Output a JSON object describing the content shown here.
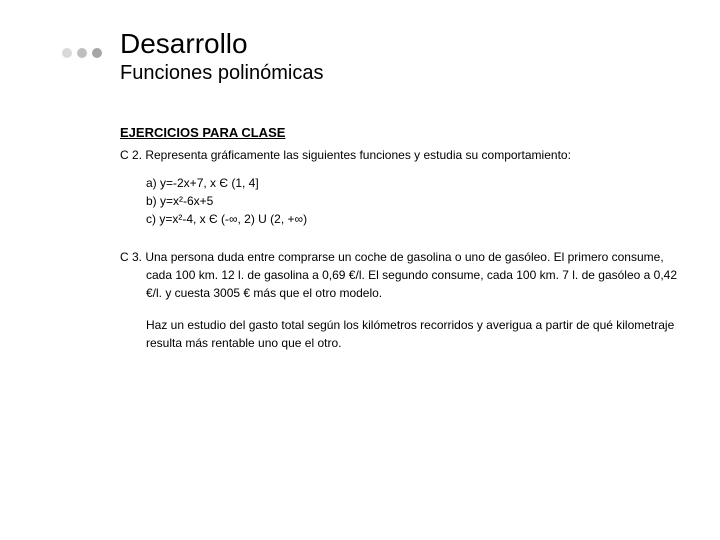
{
  "title": "Desarrollo",
  "subtitle": "Funciones polinómicas",
  "section_heading": "EJERCICIOS PARA CLASE",
  "c2": {
    "intro": "C 2. Representa gráficamente las siguientes funciones y estudia su comportamiento:",
    "items": [
      "a) y=-2x+7, x Є (1, 4]",
      "b) y=x²-6x+5",
      "c) y=x²-4, x Є (-∞, 2) U (2, +∞)"
    ]
  },
  "c3": {
    "para1": "C 3. Una persona duda entre comprarse un coche de gasolina o uno de gasóleo. El primero consume, cada 100 km. 12 l. de gasolina a 0,69 €/l. El segundo consume, cada 100 km. 7 l. de gasóleo a 0,42 €/l. y cuesta 3005 € más que el otro modelo.",
    "para2": "Haz un estudio del gasto total según los kilómetros recorridos y averigua a partir de qué kilometraje resulta más rentable uno que el otro."
  },
  "colors": {
    "text": "#000000",
    "background": "#ffffff",
    "bullet1": "#d9d9d9",
    "bullet2": "#bfbfbf",
    "bullet3": "#a6a6a6"
  }
}
